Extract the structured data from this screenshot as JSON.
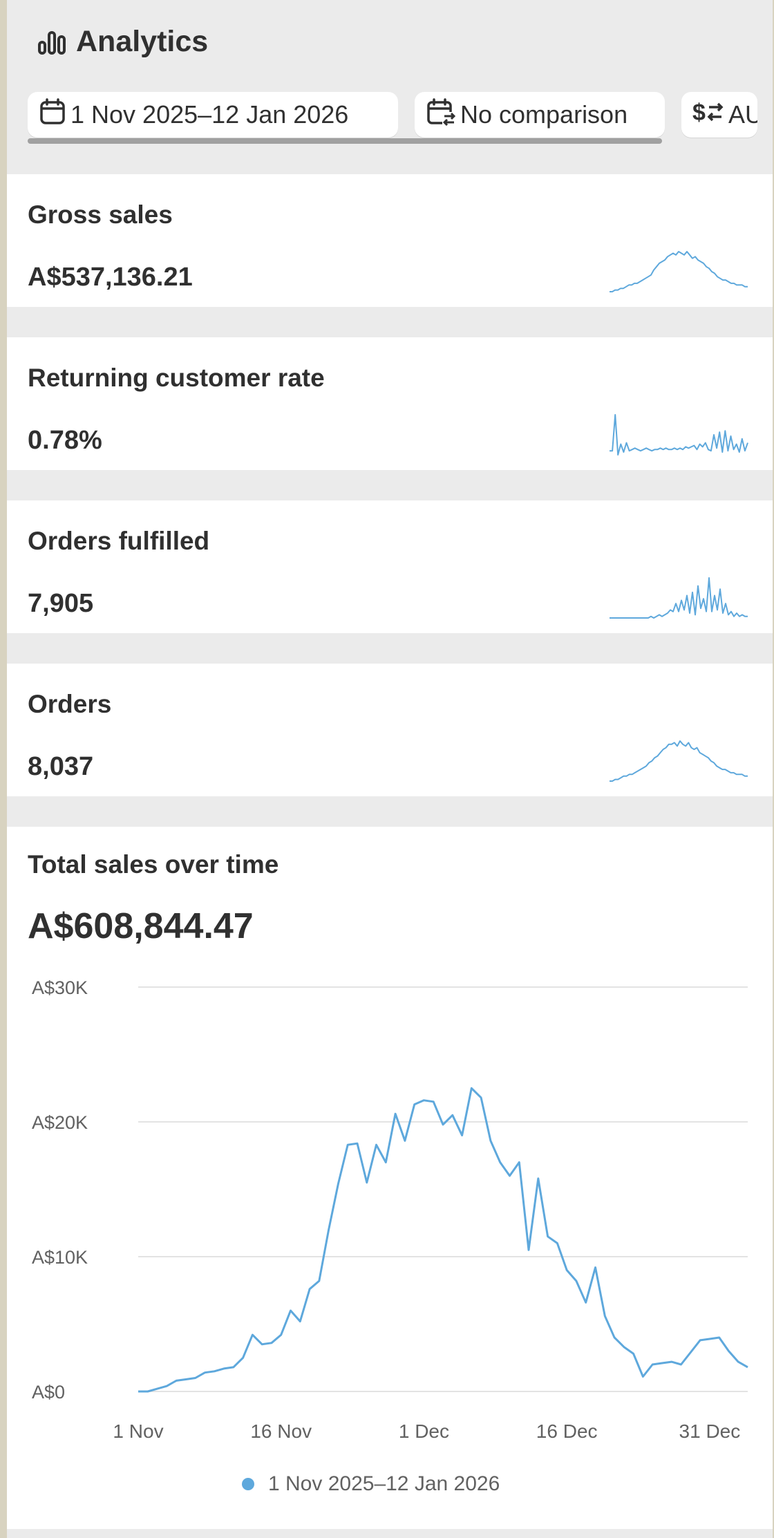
{
  "header": {
    "title": "Analytics",
    "date_range": "1 Nov 2025–12 Jan 2026",
    "comparison": "No comparison",
    "currency": "AUD"
  },
  "metrics": [
    {
      "label": "Gross sales",
      "value": "A$537,136.21"
    },
    {
      "label": "Returning customer rate",
      "value": "0.78%"
    },
    {
      "label": "Orders fulfilled",
      "value": "7,905"
    },
    {
      "label": "Orders",
      "value": "8,037"
    }
  ],
  "colors": {
    "series": "#5ea8dc",
    "grid": "#e3e3e3"
  },
  "chart": {
    "title": "Total sales over time",
    "total": "A$608,844.47",
    "legend": "1 Nov 2025–12 Jan 2026"
  },
  "chart_data": {
    "type": "line",
    "title": "Total sales over time",
    "ylim": [
      0,
      30000
    ],
    "y_ticks": [
      "A$30K",
      "A$20K",
      "A$10K",
      "A$0"
    ],
    "y_tick_values": [
      30000,
      20000,
      10000,
      0
    ],
    "x_ticks": [
      "1 Nov",
      "16 Nov",
      "1 Dec",
      "16 Dec",
      "31 Dec"
    ],
    "x_tick_days": [
      0,
      15,
      30,
      45,
      60
    ],
    "grid": true,
    "legend_placement": "bottom",
    "series": [
      {
        "name": "1 Nov 2025–12 Jan 2026",
        "values": [
          0,
          0,
          200,
          400,
          800,
          900,
          1000,
          1400,
          1500,
          1700,
          1800,
          2500,
          4200,
          3500,
          3600,
          4200,
          6000,
          5200,
          7600,
          8200,
          12000,
          15400,
          18300,
          18400,
          15500,
          18300,
          17000,
          20600,
          18600,
          21300,
          21600,
          21500,
          19800,
          20500,
          19000,
          22500,
          21800,
          18600,
          17000,
          16000,
          17000,
          10500,
          15800,
          11500,
          11000,
          9000,
          8200,
          6600,
          9200,
          5600,
          4000,
          3300,
          2800,
          1100,
          2000,
          2100,
          2200,
          2000,
          2900,
          3800,
          3900,
          4000,
          3000,
          2200,
          1800
        ]
      }
    ]
  },
  "sparklines": [
    {
      "name": "gross-sales",
      "values": [
        0,
        0,
        1,
        1,
        2,
        2,
        3,
        4,
        4,
        5,
        5,
        6,
        7,
        8,
        9,
        10,
        13,
        15,
        17,
        18,
        19,
        21,
        22,
        23,
        22,
        24,
        23,
        22,
        24,
        22,
        20,
        21,
        19,
        18,
        17,
        15,
        14,
        12,
        11,
        9,
        8,
        7,
        7,
        6,
        5,
        5,
        4,
        4,
        4,
        3,
        3
      ]
    },
    {
      "name": "returning-customer-rate",
      "values": [
        3,
        3,
        30,
        0,
        8,
        2,
        9,
        3,
        4,
        5,
        4,
        3,
        4,
        5,
        4,
        3,
        4,
        4,
        5,
        4,
        5,
        4,
        4,
        5,
        4,
        5,
        4,
        6,
        5,
        6,
        7,
        4,
        8,
        6,
        9,
        4,
        3,
        15,
        5,
        17,
        2,
        18,
        3,
        14,
        4,
        8,
        2,
        12,
        3,
        9
      ]
    },
    {
      "name": "orders-fulfilled",
      "values": [
        0,
        0,
        0,
        0,
        0,
        0,
        0,
        0,
        0,
        0,
        0,
        0,
        0,
        0,
        0,
        1,
        0,
        1,
        2,
        1,
        2,
        3,
        5,
        4,
        9,
        4,
        11,
        5,
        14,
        3,
        16,
        2,
        20,
        6,
        12,
        4,
        25,
        4,
        14,
        5,
        18,
        3,
        9,
        2,
        4,
        1,
        3,
        1,
        2,
        1,
        1
      ]
    },
    {
      "name": "orders",
      "values": [
        0,
        0,
        1,
        1,
        2,
        3,
        3,
        4,
        4,
        5,
        6,
        7,
        8,
        9,
        11,
        12,
        14,
        15,
        17,
        19,
        20,
        22,
        22,
        23,
        21,
        24,
        22,
        21,
        23,
        20,
        19,
        20,
        17,
        16,
        15,
        14,
        12,
        11,
        9,
        8,
        7,
        7,
        6,
        5,
        5,
        4,
        4,
        4,
        3,
        3
      ]
    }
  ]
}
